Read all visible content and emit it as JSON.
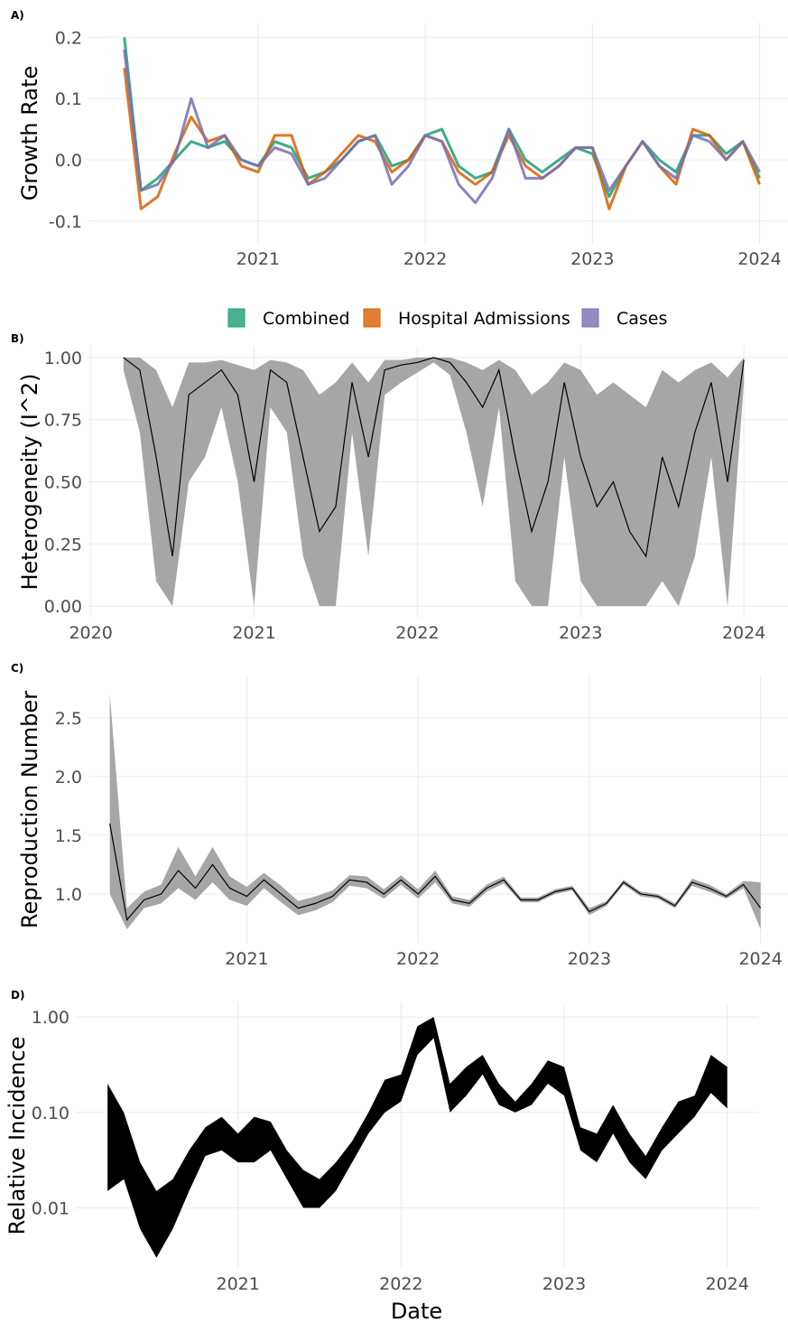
{
  "chart_data": [
    {
      "type": "line",
      "label": "A)",
      "y_label": "Growth Rate",
      "x": [
        2020.2,
        2020.3,
        2020.4,
        2020.5,
        2020.6,
        2020.7,
        2020.8,
        2020.9,
        2021.0,
        2021.1,
        2021.2,
        2021.3,
        2021.4,
        2021.5,
        2021.6,
        2021.7,
        2021.8,
        2021.9,
        2022.0,
        2022.1,
        2022.2,
        2022.3,
        2022.4,
        2022.5,
        2022.6,
        2022.7,
        2022.8,
        2022.9,
        2023.0,
        2023.1,
        2023.2,
        2023.3,
        2023.4,
        2023.5,
        2023.6,
        2023.7,
        2023.8,
        2023.9,
        2024.0
      ],
      "series": [
        {
          "name": "Combined",
          "color": "#1b9e77",
          "values": [
            0.2,
            -0.05,
            -0.03,
            0.0,
            0.03,
            0.02,
            0.03,
            0.0,
            -0.01,
            0.03,
            0.02,
            -0.03,
            -0.02,
            0.0,
            0.03,
            0.04,
            -0.01,
            0.0,
            0.04,
            0.05,
            -0.01,
            -0.03,
            -0.02,
            0.05,
            0.0,
            -0.02,
            0.0,
            0.02,
            0.01,
            -0.06,
            -0.01,
            0.03,
            0.0,
            -0.02,
            0.04,
            0.04,
            0.01,
            0.03,
            -0.03
          ]
        },
        {
          "name": "Hospital Admissions",
          "color": "#d95f02",
          "values": [
            0.15,
            -0.08,
            -0.06,
            0.01,
            0.07,
            0.03,
            0.04,
            -0.01,
            -0.02,
            0.04,
            0.04,
            -0.04,
            -0.02,
            0.01,
            0.04,
            0.03,
            -0.02,
            0.0,
            0.04,
            0.03,
            -0.02,
            -0.04,
            -0.02,
            0.04,
            -0.01,
            -0.03,
            -0.01,
            0.02,
            0.02,
            -0.08,
            -0.01,
            0.03,
            -0.01,
            -0.04,
            0.05,
            0.04,
            0.0,
            0.03,
            -0.04
          ]
        },
        {
          "name": "Cases",
          "color": "#7570b3",
          "values": [
            0.18,
            -0.05,
            -0.04,
            0.0,
            0.1,
            0.02,
            0.04,
            0.0,
            -0.01,
            0.02,
            0.01,
            -0.04,
            -0.03,
            0.0,
            0.03,
            0.04,
            -0.04,
            -0.01,
            0.04,
            0.03,
            -0.04,
            -0.07,
            -0.03,
            0.05,
            -0.03,
            -0.03,
            -0.01,
            0.02,
            0.02,
            -0.05,
            -0.01,
            0.03,
            -0.01,
            -0.03,
            0.04,
            0.03,
            0.0,
            0.03,
            -0.02
          ]
        }
      ],
      "xlim": [
        2019.98,
        2024.17
      ],
      "xticks": [
        2021,
        2022,
        2023,
        2024
      ],
      "ylim": [
        -0.137,
        0.224
      ],
      "yticks": [
        0.2,
        0.1,
        {
          "value": 0,
          "label": "0.0"
        },
        -0.1
      ],
      "grid": true
    },
    {
      "type": "ribbon",
      "label": "B)",
      "y_label": "Heterogeneity (I^2)",
      "x": [
        2020.2,
        2020.3,
        2020.4,
        2020.5,
        2020.6,
        2020.7,
        2020.8,
        2020.9,
        2021.0,
        2021.1,
        2021.2,
        2021.3,
        2021.4,
        2021.5,
        2021.6,
        2021.7,
        2021.8,
        2021.9,
        2022.0,
        2022.1,
        2022.2,
        2022.3,
        2022.4,
        2022.5,
        2022.6,
        2022.7,
        2022.8,
        2022.9,
        2023.0,
        2023.1,
        2023.2,
        2023.3,
        2023.4,
        2023.5,
        2023.6,
        2023.7,
        2023.8,
        2023.9,
        2024.0
      ],
      "values": [
        1.0,
        0.95,
        0.6,
        0.2,
        0.85,
        0.9,
        0.95,
        0.85,
        0.5,
        0.95,
        0.9,
        0.6,
        0.3,
        0.4,
        0.9,
        0.6,
        0.95,
        0.97,
        0.98,
        1.0,
        0.98,
        0.9,
        0.8,
        0.95,
        0.6,
        0.3,
        0.5,
        0.9,
        0.6,
        0.4,
        0.5,
        0.3,
        0.2,
        0.6,
        0.4,
        0.7,
        0.9,
        0.5,
        0.99
      ],
      "lower": [
        0.95,
        0.7,
        0.1,
        0.0,
        0.5,
        0.6,
        0.8,
        0.5,
        0.0,
        0.8,
        0.7,
        0.2,
        0.0,
        0.0,
        0.7,
        0.2,
        0.85,
        0.9,
        0.94,
        0.98,
        0.93,
        0.7,
        0.4,
        0.8,
        0.1,
        0.0,
        0.0,
        0.6,
        0.1,
        0.0,
        0.0,
        0.0,
        0.0,
        0.1,
        0.0,
        0.2,
        0.6,
        0.0,
        0.9
      ],
      "upper": [
        1.0,
        1.0,
        0.95,
        0.8,
        0.98,
        0.98,
        0.99,
        0.97,
        0.95,
        0.99,
        0.98,
        0.95,
        0.85,
        0.9,
        0.98,
        0.9,
        0.99,
        0.99,
        1.0,
        1.0,
        1.0,
        0.98,
        0.95,
        0.99,
        0.95,
        0.85,
        0.9,
        0.98,
        0.95,
        0.85,
        0.9,
        0.85,
        0.8,
        0.95,
        0.9,
        0.95,
        0.98,
        0.92,
        1.0
      ],
      "xlim": [
        2019.98,
        2024.27
      ],
      "xticks": [
        2020,
        2021,
        2022,
        2023,
        2024
      ],
      "ylim": [
        -0.047,
        1.047
      ],
      "yticks": [
        {
          "value": 1,
          "label": "1.00"
        },
        {
          "value": 0.75,
          "label": "0.75"
        },
        {
          "value": 0.5,
          "label": "0.50"
        },
        {
          "value": 0.25,
          "label": "0.25"
        },
        {
          "value": 0,
          "label": "0.00"
        }
      ],
      "grid": true
    },
    {
      "type": "ribbon",
      "label": "C)",
      "y_label": "Reproduction Number",
      "x": [
        2020.2,
        2020.3,
        2020.4,
        2020.5,
        2020.6,
        2020.7,
        2020.8,
        2020.9,
        2021.0,
        2021.1,
        2021.2,
        2021.3,
        2021.4,
        2021.5,
        2021.6,
        2021.7,
        2021.8,
        2021.9,
        2022.0,
        2022.1,
        2022.2,
        2022.3,
        2022.4,
        2022.5,
        2022.6,
        2022.7,
        2022.8,
        2022.9,
        2023.0,
        2023.1,
        2023.2,
        2023.3,
        2023.4,
        2023.5,
        2023.6,
        2023.7,
        2023.8,
        2023.9,
        2024.0
      ],
      "values": [
        1.6,
        0.78,
        0.95,
        1.0,
        1.2,
        1.05,
        1.25,
        1.05,
        0.98,
        1.12,
        1.0,
        0.88,
        0.92,
        0.98,
        1.12,
        1.1,
        1.0,
        1.12,
        1.0,
        1.15,
        0.95,
        0.92,
        1.05,
        1.12,
        0.95,
        0.95,
        1.02,
        1.05,
        0.85,
        0.92,
        1.1,
        1.0,
        0.98,
        0.9,
        1.1,
        1.05,
        0.98,
        1.08,
        0.88
      ],
      "lower": [
        1.0,
        0.7,
        0.88,
        0.92,
        1.05,
        0.95,
        1.1,
        0.95,
        0.9,
        1.05,
        0.93,
        0.82,
        0.86,
        0.93,
        1.07,
        1.05,
        0.96,
        1.08,
        0.96,
        1.1,
        0.92,
        0.89,
        1.02,
        1.09,
        0.93,
        0.93,
        1.0,
        1.03,
        0.82,
        0.9,
        1.08,
        0.98,
        0.96,
        0.88,
        1.07,
        1.02,
        0.96,
        1.05,
        0.7
      ],
      "upper": [
        2.7,
        0.88,
        1.02,
        1.08,
        1.4,
        1.15,
        1.4,
        1.15,
        1.06,
        1.18,
        1.07,
        0.94,
        0.98,
        1.03,
        1.16,
        1.15,
        1.04,
        1.16,
        1.04,
        1.2,
        0.98,
        0.95,
        1.08,
        1.15,
        0.97,
        0.97,
        1.04,
        1.07,
        0.88,
        0.94,
        1.12,
        1.02,
        1.0,
        0.92,
        1.13,
        1.08,
        1.0,
        1.11,
        1.1
      ],
      "xlim": [
        2020.07,
        2024.16
      ],
      "xticks": [
        2021,
        2022,
        2023,
        2024
      ],
      "ylim": [
        0.577,
        2.86
      ],
      "yticks": [
        2.5,
        {
          "value": 2,
          "label": "2.0"
        },
        1.5,
        {
          "value": 1,
          "label": "1.0"
        }
      ],
      "grid": true
    },
    {
      "type": "band",
      "label": "D)",
      "y_label": "Relative Incidence",
      "x_label": "Date",
      "log_y": true,
      "x": [
        2020.2,
        2020.3,
        2020.4,
        2020.5,
        2020.6,
        2020.7,
        2020.8,
        2020.9,
        2021.0,
        2021.1,
        2021.2,
        2021.3,
        2021.4,
        2021.5,
        2021.6,
        2021.7,
        2021.8,
        2021.9,
        2022.0,
        2022.1,
        2022.2,
        2022.3,
        2022.4,
        2022.5,
        2022.6,
        2022.7,
        2022.8,
        2022.9,
        2023.0,
        2023.1,
        2023.2,
        2023.3,
        2023.4,
        2023.5,
        2023.6,
        2023.7,
        2023.8,
        2023.9,
        2024.0
      ],
      "lower": [
        0.015,
        0.02,
        0.006,
        0.003,
        0.006,
        0.015,
        0.035,
        0.04,
        0.03,
        0.03,
        0.04,
        0.02,
        0.01,
        0.01,
        0.015,
        0.03,
        0.06,
        0.1,
        0.13,
        0.4,
        0.6,
        0.1,
        0.15,
        0.25,
        0.12,
        0.1,
        0.12,
        0.2,
        0.15,
        0.04,
        0.03,
        0.06,
        0.03,
        0.02,
        0.04,
        0.06,
        0.09,
        0.16,
        0.11
      ],
      "upper": [
        0.2,
        0.1,
        0.03,
        0.015,
        0.02,
        0.04,
        0.07,
        0.09,
        0.06,
        0.09,
        0.08,
        0.04,
        0.025,
        0.02,
        0.03,
        0.05,
        0.1,
        0.22,
        0.25,
        0.8,
        1.0,
        0.2,
        0.3,
        0.4,
        0.2,
        0.13,
        0.2,
        0.35,
        0.3,
        0.07,
        0.06,
        0.12,
        0.06,
        0.035,
        0.07,
        0.13,
        0.15,
        0.4,
        0.3
      ],
      "xlim": [
        2020.0,
        2024.19
      ],
      "xticks": [
        2021,
        2022,
        2023,
        2024
      ],
      "ylim": [
        0.0023,
        1.42
      ],
      "yticks": [
        {
          "value": 1,
          "label": "1.00"
        },
        {
          "value": 0.1,
          "label": "0.10"
        },
        0.01
      ],
      "grid": true
    }
  ]
}
